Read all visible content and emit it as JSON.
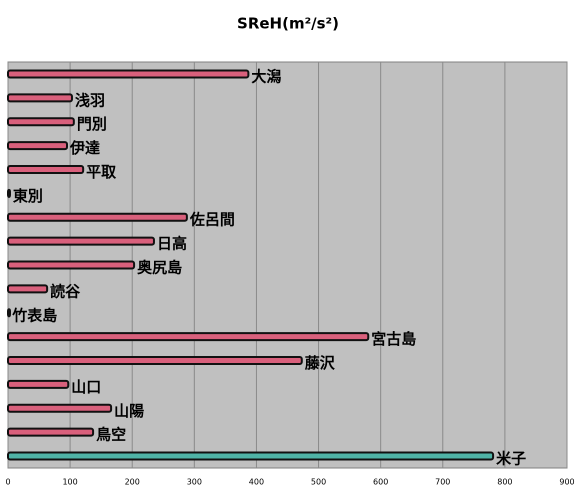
{
  "chart_data": {
    "type": "hbar",
    "title": "SReH(m²/s²)",
    "categories": [
      "大潟",
      "浅羽",
      "門別",
      "伊達",
      "平取",
      "東別",
      "佐呂間",
      "日高",
      "奥尻島",
      "読谷",
      "竹表島",
      "宮古島",
      "藤沢",
      "山口",
      "山陽",
      "鳥空",
      "米子"
    ],
    "values": [
      387,
      103,
      106,
      95,
      121,
      3,
      288,
      235,
      203,
      63,
      2,
      580,
      473,
      97,
      166,
      137,
      781
    ],
    "colors": [
      "#d9607c",
      "#d9607c",
      "#d9607c",
      "#d9607c",
      "#d9607c",
      "#d9607c",
      "#d9607c",
      "#d9607c",
      "#d9607c",
      "#d9607c",
      "#d9607c",
      "#d9607c",
      "#d9607c",
      "#d9607c",
      "#d9607c",
      "#d9607c",
      "#4fb3a6"
    ],
    "xlim": [
      0,
      900
    ],
    "xticks": [
      0,
      100,
      200,
      300,
      400,
      500,
      600,
      700,
      800,
      900
    ],
    "grid": true
  }
}
